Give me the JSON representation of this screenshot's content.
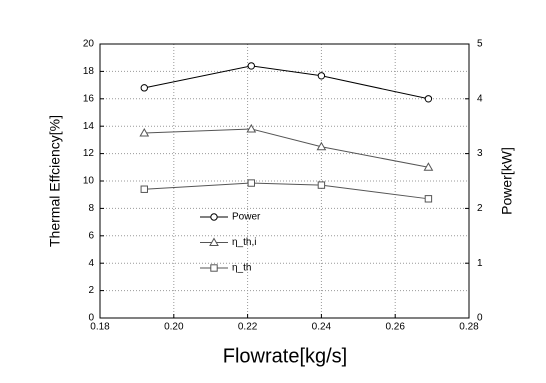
{
  "chart_data": {
    "type": "line",
    "xlabel": "Flowrate[kg/s]",
    "ylabel": "Thermal Effciency[%]",
    "y2label": "Power[kW]",
    "xlim": [
      0.18,
      0.28
    ],
    "xticks": [
      {
        "value": 0.18,
        "label": "0.18"
      },
      {
        "value": 0.2,
        "label": "0.20"
      },
      {
        "value": 0.22,
        "label": "0.22"
      },
      {
        "value": 0.24,
        "label": "0.24"
      },
      {
        "value": 0.26,
        "label": "0.26"
      },
      {
        "value": 0.28,
        "label": "0.28"
      }
    ],
    "ylim": [
      0,
      20
    ],
    "yticks": [
      0,
      2,
      4,
      6,
      8,
      10,
      12,
      14,
      16,
      18,
      20
    ],
    "y2lim": [
      0,
      5
    ],
    "y2ticks": [
      0,
      1,
      2,
      3,
      4,
      5
    ],
    "grid": true,
    "legend": "center",
    "x": [
      0.192,
      0.221,
      0.24,
      0.269
    ],
    "series": [
      {
        "name": "Power",
        "color": "#000000",
        "marker": "circle",
        "axis": "y2",
        "values": [
          4.2,
          4.6,
          4.42,
          4.0
        ]
      },
      {
        "name": "η_th,i",
        "color": "#555555",
        "marker": "triangle",
        "values": [
          13.5,
          13.8,
          12.5,
          11.0
        ]
      },
      {
        "name": "η_th",
        "color": "#555555",
        "marker": "square",
        "values": [
          9.4,
          9.85,
          9.7,
          8.7
        ]
      }
    ]
  }
}
